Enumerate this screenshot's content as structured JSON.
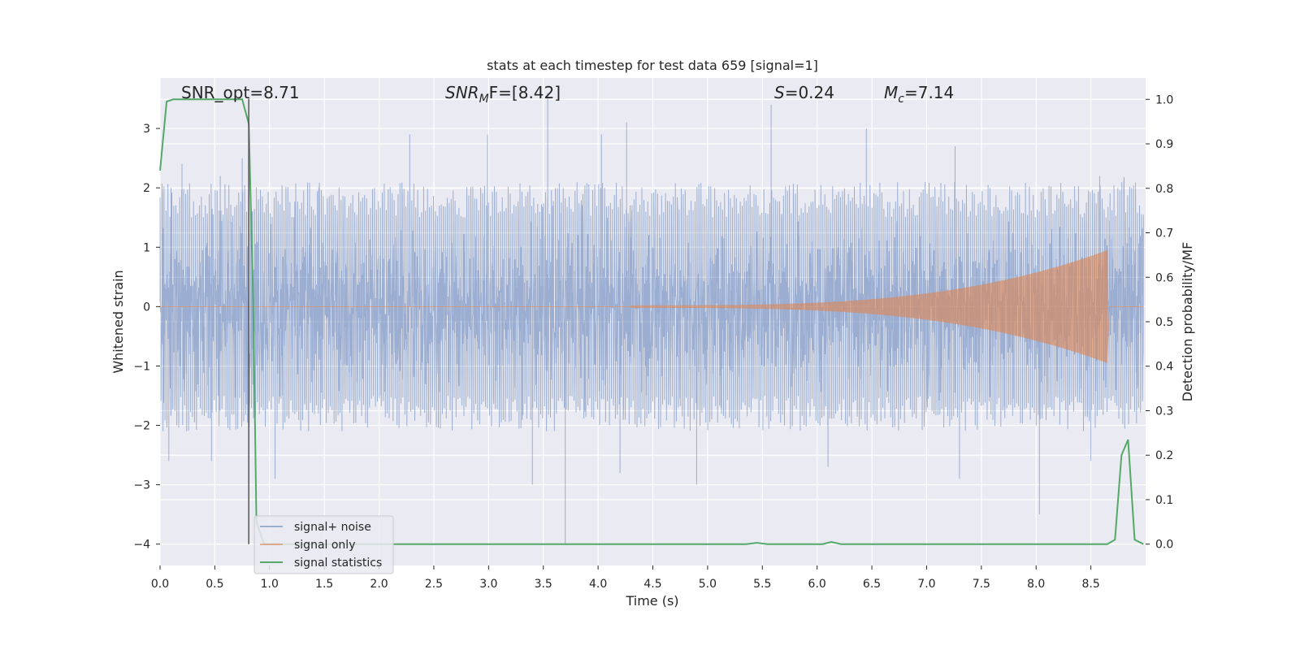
{
  "chart_data": {
    "type": "line",
    "title": "stats at each timestep for test data 659 [signal=1]",
    "xlabel": "Time (s)",
    "ylabel": "Whitened strain",
    "y2label": "Detection probability/MF",
    "xlim": [
      0.0,
      9.0
    ],
    "ylim": [
      -4.36,
      3.85
    ],
    "y2lim": [
      -0.048,
      1.048
    ],
    "x_ticks": [
      "0.0",
      "0.5",
      "1.0",
      "1.5",
      "2.0",
      "2.5",
      "3.0",
      "3.5",
      "4.0",
      "4.5",
      "5.0",
      "5.5",
      "6.0",
      "6.5",
      "7.0",
      "7.5",
      "8.0",
      "8.5"
    ],
    "y_ticks": [
      "3",
      "2",
      "1",
      "0",
      "−1",
      "−2",
      "−3",
      "−4"
    ],
    "y2_ticks": [
      "1.0",
      "0.9",
      "0.8",
      "0.7",
      "0.6",
      "0.5",
      "0.4",
      "0.3",
      "0.2",
      "0.1",
      "0.0"
    ],
    "grid": true,
    "legend_position": "lower-left",
    "annotations": {
      "snr_opt": "SNR_opt=8.71",
      "snr_mf_sym": "SNR",
      "snr_mf_sub": "M",
      "snr_mf_rest": "F=[8.42]",
      "s_sym": "S",
      "s_rest": "=0.24",
      "mc_sym": "M",
      "mc_sub": "c",
      "mc_rest": "=7.14"
    },
    "marker_line_x": 0.81,
    "series": [
      {
        "name": "signal+ noise",
        "color": "#4c72b0",
        "axis": "left",
        "description_values": "noise envelope approx ±1.7 with spikes",
        "peaks": [
          [
            0.1,
            2.0
          ],
          [
            0.2,
            2.4
          ],
          [
            0.55,
            2.2
          ],
          [
            0.75,
            2.5
          ],
          [
            2.28,
            2.9
          ],
          [
            2.99,
            2.9
          ],
          [
            3.54,
            3.6
          ],
          [
            4.03,
            2.9
          ],
          [
            4.26,
            3.1
          ],
          [
            5.58,
            3.4
          ],
          [
            6.45,
            3.0
          ],
          [
            7.26,
            2.7
          ],
          [
            8.58,
            2.2
          ],
          [
            0.08,
            -2.6
          ],
          [
            0.47,
            -2.6
          ],
          [
            1.05,
            -2.9
          ],
          [
            3.4,
            -3.0
          ],
          [
            3.7,
            -4.0
          ],
          [
            4.2,
            -2.8
          ],
          [
            4.9,
            -3.0
          ],
          [
            6.1,
            -2.7
          ],
          [
            7.3,
            -2.9
          ],
          [
            8.03,
            -3.5
          ],
          [
            8.5,
            -2.6
          ]
        ]
      },
      {
        "name": "signal only",
        "color": "#dd8452",
        "axis": "left",
        "chirp_start": 4.3,
        "chirp_end": 8.65,
        "start_amplitude": 0.02,
        "peak_amplitude": 0.95,
        "final_trough": -0.85
      },
      {
        "name": "signal statistics",
        "color": "#55a868",
        "axis": "right",
        "x": [
          0.0,
          0.06,
          0.12,
          0.5,
          0.75,
          0.81,
          0.85,
          0.88,
          0.95,
          1.2,
          5.35,
          5.45,
          5.55,
          6.05,
          6.13,
          6.22,
          8.65,
          8.72,
          8.78,
          8.84,
          8.9,
          8.98
        ],
        "y": [
          0.84,
          0.995,
          1.0,
          1.0,
          1.0,
          0.945,
          0.55,
          0.05,
          0.0,
          0.0,
          0.0,
          0.003,
          0.0,
          0.0,
          0.005,
          0.0,
          0.0,
          0.01,
          0.2,
          0.235,
          0.01,
          0.0
        ]
      }
    ]
  }
}
